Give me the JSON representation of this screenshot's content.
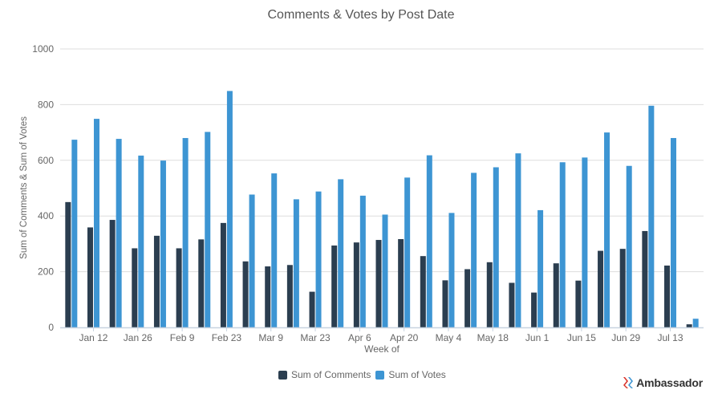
{
  "title": "Comments & Votes by Post Date",
  "colors": {
    "comments": "#2b3e50",
    "votes": "#3d95d3",
    "grid": "#dddddd",
    "axis": "#c8d3e0",
    "text": "#666666"
  },
  "legend": {
    "comments_label": "Sum of Comments",
    "votes_label": "Sum of Votes"
  },
  "logo": {
    "text": "Ambassador"
  },
  "chart_data": {
    "type": "bar",
    "title": "Comments & Votes by Post Date",
    "xlabel": "Week of",
    "ylabel": "Sum of Comments & Sum of Votes",
    "ylim": [
      0,
      1000
    ],
    "yticks": [
      0,
      200,
      400,
      600,
      800,
      1000
    ],
    "grid": true,
    "legend_position": "bottom",
    "x_tick_labels": [
      "Jan 12",
      "Jan 26",
      "Feb 9",
      "Feb 23",
      "Mar 9",
      "Mar 23",
      "Apr 6",
      "Apr 20",
      "May 4",
      "May 18",
      "Jun 1",
      "Jun 15",
      "Jun 29",
      "Jul 13"
    ],
    "categories": [
      "Jan 5",
      "Jan 12",
      "Jan 19",
      "Jan 26",
      "Feb 2",
      "Feb 9",
      "Feb 16",
      "Feb 23",
      "Mar 2",
      "Mar 9",
      "Mar 16",
      "Mar 23",
      "Mar 30",
      "Apr 6",
      "Apr 13",
      "Apr 20",
      "Apr 27",
      "May 4",
      "May 11",
      "May 18",
      "May 25",
      "Jun 1",
      "Jun 8",
      "Jun 15",
      "Jun 22",
      "Jun 29",
      "Jul 6",
      "Jul 13",
      "Jul 20"
    ],
    "series": [
      {
        "name": "Sum of Comments",
        "color": "#2b3e50",
        "values": [
          450,
          359,
          386,
          284,
          329,
          284,
          316,
          375,
          237,
          219,
          224,
          128,
          294,
          305,
          314,
          317,
          256,
          169,
          209,
          234,
          160,
          125,
          230,
          168,
          275,
          282,
          346,
          222,
          11
        ]
      },
      {
        "name": "Sum of Votes",
        "color": "#3d95d3",
        "values": [
          674,
          749,
          677,
          617,
          599,
          680,
          702,
          849,
          477,
          553,
          460,
          488,
          532,
          473,
          405,
          538,
          618,
          411,
          555,
          575,
          625,
          421,
          593,
          610,
          700,
          580,
          796,
          680,
          31
        ]
      }
    ]
  }
}
